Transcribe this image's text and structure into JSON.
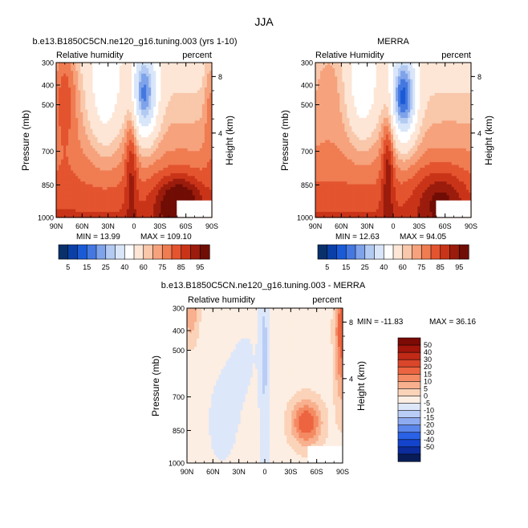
{
  "figure": {
    "title": "JJA"
  },
  "colors": {
    "rh_levels": [
      "#08306b",
      "#0b3fa8",
      "#1a5ad6",
      "#4478e0",
      "#7fa3ea",
      "#b3caf2",
      "#d9e6fa",
      "#ffffff",
      "#fde6d6",
      "#f9c7aa",
      "#f6a27c",
      "#f07c52",
      "#e3542f",
      "#c93418",
      "#9b1c0c",
      "#700d05"
    ],
    "diff_levels": [
      "#081d58",
      "#0c2c9c",
      "#1444cc",
      "#2a62e6",
      "#5b86ec",
      "#8eabf1",
      "#b9cdf6",
      "#dde7fa",
      "#fdeee3",
      "#fbd3b9",
      "#f8b08e",
      "#f48a63",
      "#ec6540",
      "#d9462a",
      "#c02a17",
      "#a1150b",
      "#7c0a05"
    ]
  },
  "chart_data": [
    {
      "type": "heatmap",
      "title": "b.e13.B1850C5CN.ne120_g16.tuning.003 (yrs 1-10)",
      "left_label": "Relative humidity",
      "right_label": "percent",
      "xlabel": "",
      "ylabel": "Pressure (mb)",
      "ylabel_right": "Height (km)",
      "x_ticks": [
        "90N",
        "60N",
        "30N",
        "0",
        "30S",
        "60S",
        "90S"
      ],
      "y_ticks": [
        "300",
        "400",
        "500",
        "700",
        "850",
        "1000"
      ],
      "y_ticks_right": [
        "8",
        "4"
      ],
      "min_text": "MIN =   13.99",
      "max_text": "MAX = 109.10",
      "colorbar_labels": [
        "5",
        "15",
        "25",
        "40",
        "60",
        "75",
        "85",
        "95"
      ]
    },
    {
      "type": "heatmap",
      "title": "MERRA",
      "left_label": "Relative Humidity",
      "right_label": "percent",
      "xlabel": "",
      "ylabel": "Pressure (mb)",
      "ylabel_right": "Height (km)",
      "x_ticks": [
        "90N",
        "60N",
        "30N",
        "0",
        "30S",
        "60S",
        "90S"
      ],
      "y_ticks": [
        "300",
        "400",
        "500",
        "700",
        "850",
        "1000"
      ],
      "y_ticks_right": [
        "8",
        "4"
      ],
      "min_text": "MIN =   12.63",
      "max_text": "MAX =   94.05",
      "colorbar_labels": [
        "5",
        "15",
        "25",
        "40",
        "60",
        "75",
        "85",
        "95"
      ]
    },
    {
      "type": "heatmap",
      "title": "b.e13.B1850C5CN.ne120_g16.tuning.003 - MERRA",
      "left_label": "Relative humidity",
      "right_label": "percent",
      "xlabel": "",
      "ylabel": "Pressure (mb)",
      "ylabel_right": "Height (km)",
      "x_ticks": [
        "90N",
        "60N",
        "30N",
        "0",
        "30S",
        "60S",
        "90S"
      ],
      "y_ticks": [
        "300",
        "400",
        "500",
        "700",
        "850",
        "1000"
      ],
      "y_ticks_right": [
        "8",
        "4"
      ],
      "min_text": "MIN = -11.83",
      "max_text": "MAX =   36.16",
      "colorbar_labels": [
        "50",
        "40",
        "30",
        "20",
        "15",
        "10",
        "5",
        "0",
        "-5",
        "-10",
        "-15",
        "-20",
        "-30",
        "-40",
        "-50"
      ]
    }
  ]
}
